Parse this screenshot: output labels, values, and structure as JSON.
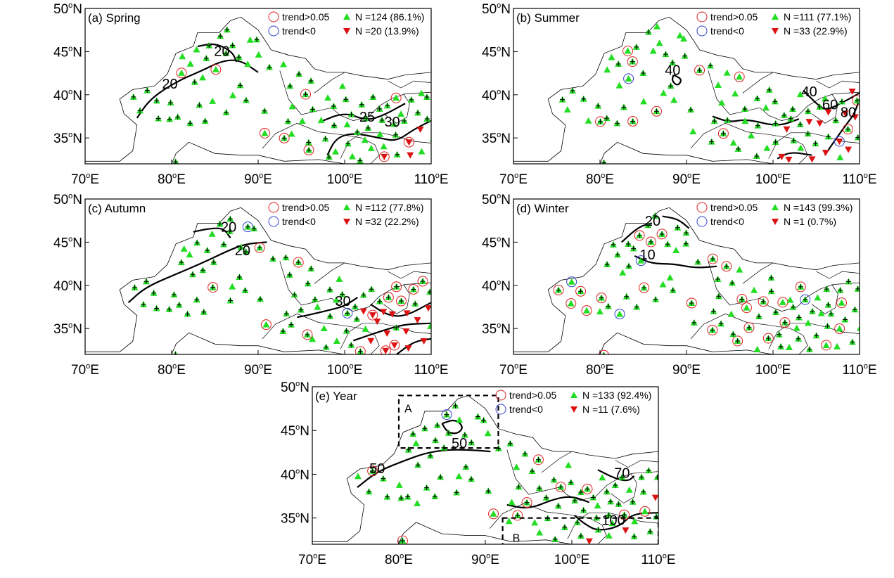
{
  "figure": {
    "panels": [
      {
        "id": "a",
        "title": "(a) Spring",
        "legend": {
          "sig_label": "trend>0.05",
          "neg_label": "trend<0",
          "pos_text": "N =124 (86.1%)",
          "neg_text": "N =20 (13.9%)"
        },
        "contour_labels": [
          "20",
          "20",
          "25",
          "30"
        ],
        "boxes": []
      },
      {
        "id": "b",
        "title": "(b) Summer",
        "legend": {
          "sig_label": "trend>0.05",
          "neg_label": "trend<0",
          "pos_text": "N =111 (77.1%)",
          "neg_text": "N =33 (22.9%)"
        },
        "contour_labels": [
          "40",
          "40",
          "60",
          "80"
        ],
        "boxes": []
      },
      {
        "id": "c",
        "title": "(c) Autumn",
        "legend": {
          "sig_label": "trend>0.05",
          "neg_label": "trend<0",
          "pos_text": "N =112 (77.8%)",
          "neg_text": "N =32 (22.2%)"
        },
        "contour_labels": [
          "20",
          "20",
          "30"
        ],
        "boxes": []
      },
      {
        "id": "d",
        "title": "(d) Winter",
        "legend": {
          "sig_label": "trend>0.05",
          "neg_label": "trend<0",
          "pos_text": "N =143 (99.3%)",
          "neg_text": "N =1 (0.7%)"
        },
        "contour_labels": [
          "20",
          "10"
        ],
        "boxes": []
      },
      {
        "id": "e",
        "title": "(e) Year",
        "legend": {
          "sig_label": "trend>0.05",
          "neg_label": "trend<0",
          "pos_text": "N =133 (92.4%)",
          "neg_text": "N =11 (7.6%)"
        },
        "contour_labels": [
          "50",
          "50",
          "70",
          "100"
        ],
        "boxes": [
          "A",
          "B"
        ]
      }
    ],
    "axes": {
      "lat_ticks": [
        "35",
        "40",
        "45",
        "50"
      ],
      "lon_ticks": [
        "70",
        "80",
        "90",
        "100",
        "110"
      ],
      "lat_suffix": "N",
      "lon_suffix": "E",
      "degree_symbol": "o"
    },
    "colors": {
      "positive_marker": "#22dd22",
      "negative_marker": "#dd1111",
      "significant_circle": "#dd2222",
      "negative_trend_circle": "#3344cc",
      "contour": "#000000",
      "boundary": "#000000"
    }
  }
}
